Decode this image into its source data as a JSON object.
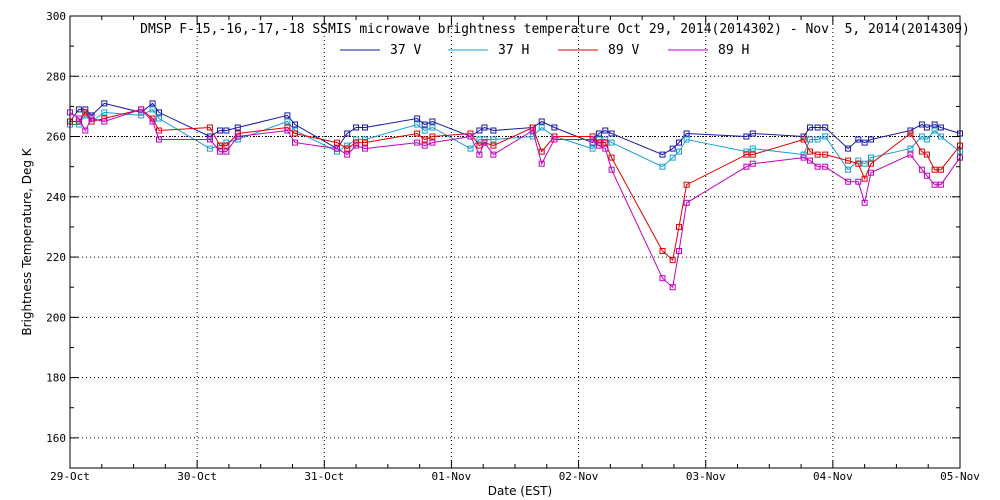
{
  "chart_data": {
    "type": "line",
    "title": "DMSP F-15,-16,-17,-18 SSMIS microwave brightness temperature Oct 29, 2014(2014302) - Nov  5, 2014(2014309)",
    "xlabel": "Date (EST)",
    "ylabel": "Brightness Temperature, Deg K",
    "xlim": [
      0,
      7
    ],
    "ylim": [
      150,
      300
    ],
    "x_ticks": [
      {
        "v": 0,
        "label": "29-Oct"
      },
      {
        "v": 1,
        "label": "30-Oct"
      },
      {
        "v": 2,
        "label": "31-Oct"
      },
      {
        "v": 3,
        "label": "01-Nov"
      },
      {
        "v": 4,
        "label": "02-Nov"
      },
      {
        "v": 5,
        "label": "03-Nov"
      },
      {
        "v": 6,
        "label": "04-Nov"
      },
      {
        "v": 7,
        "label": "05-Nov"
      }
    ],
    "y_ticks": [
      160,
      180,
      200,
      220,
      240,
      260,
      280,
      300
    ],
    "grid": true,
    "legend_position": "top-center",
    "reference_line": 260,
    "series": [
      {
        "name": "37 V",
        "color": "#1a1aa8",
        "points": [
          [
            0.0,
            265
          ],
          [
            0.07,
            269
          ],
          [
            0.12,
            269
          ],
          [
            0.17,
            267
          ],
          [
            0.27,
            271
          ],
          [
            0.56,
            268
          ],
          [
            0.65,
            271
          ],
          [
            0.7,
            268
          ],
          [
            1.1,
            260
          ],
          [
            1.18,
            262
          ],
          [
            1.23,
            262
          ],
          [
            1.32,
            263
          ],
          [
            1.71,
            267
          ],
          [
            1.77,
            264
          ],
          [
            2.1,
            256
          ],
          [
            2.18,
            261
          ],
          [
            2.25,
            263
          ],
          [
            2.32,
            263
          ],
          [
            2.73,
            266
          ],
          [
            2.79,
            264
          ],
          [
            2.85,
            265
          ],
          [
            3.15,
            260
          ],
          [
            3.22,
            262
          ],
          [
            3.26,
            263
          ],
          [
            3.33,
            262
          ],
          [
            3.64,
            263
          ],
          [
            3.71,
            265
          ],
          [
            3.81,
            263
          ],
          [
            4.11,
            258
          ],
          [
            4.16,
            261
          ],
          [
            4.21,
            262
          ],
          [
            4.26,
            261
          ],
          [
            4.66,
            254
          ],
          [
            4.74,
            256
          ],
          [
            4.79,
            258
          ],
          [
            4.85,
            261
          ],
          [
            5.32,
            260
          ],
          [
            5.37,
            261
          ],
          [
            5.77,
            260
          ],
          [
            5.82,
            263
          ],
          [
            5.88,
            263
          ],
          [
            5.94,
            263
          ],
          [
            6.12,
            256
          ],
          [
            6.2,
            259
          ],
          [
            6.25,
            258
          ],
          [
            6.3,
            259
          ],
          [
            6.61,
            262
          ],
          [
            6.7,
            264
          ],
          [
            6.74,
            263
          ],
          [
            6.8,
            264
          ],
          [
            6.85,
            263
          ],
          [
            7.0,
            261
          ]
        ]
      },
      {
        "name": "37 H",
        "color": "#1aa0d0",
        "points": [
          [
            0.0,
            264
          ],
          [
            0.07,
            264
          ],
          [
            0.12,
            267
          ],
          [
            0.17,
            265
          ],
          [
            0.27,
            268
          ],
          [
            0.56,
            267
          ],
          [
            0.65,
            269
          ],
          [
            0.7,
            266
          ],
          [
            1.1,
            256
          ],
          [
            1.18,
            257
          ],
          [
            1.23,
            258
          ],
          [
            1.32,
            259
          ],
          [
            1.71,
            265
          ],
          [
            1.77,
            262
          ],
          [
            2.1,
            255
          ],
          [
            2.18,
            257
          ],
          [
            2.25,
            259
          ],
          [
            2.32,
            259
          ],
          [
            2.73,
            264
          ],
          [
            2.79,
            262
          ],
          [
            2.85,
            263
          ],
          [
            3.15,
            256
          ],
          [
            3.22,
            259
          ],
          [
            3.26,
            259
          ],
          [
            3.33,
            259
          ],
          [
            3.64,
            260
          ],
          [
            3.71,
            263
          ],
          [
            3.81,
            260
          ],
          [
            4.11,
            256
          ],
          [
            4.16,
            259
          ],
          [
            4.21,
            259
          ],
          [
            4.26,
            258
          ],
          [
            4.66,
            250
          ],
          [
            4.74,
            253
          ],
          [
            4.79,
            255
          ],
          [
            4.85,
            259
          ],
          [
            5.32,
            255
          ],
          [
            5.37,
            256
          ],
          [
            5.77,
            254
          ],
          [
            5.82,
            259
          ],
          [
            5.88,
            259
          ],
          [
            5.94,
            260
          ],
          [
            6.12,
            249
          ],
          [
            6.2,
            252
          ],
          [
            6.25,
            251
          ],
          [
            6.3,
            253
          ],
          [
            6.61,
            256
          ],
          [
            6.7,
            260
          ],
          [
            6.74,
            259
          ],
          [
            6.8,
            262
          ],
          [
            6.85,
            260
          ],
          [
            7.0,
            255
          ]
        ]
      },
      {
        "name": "89 V",
        "color": "#e00000",
        "points": [
          [
            0.0,
            265
          ],
          [
            0.07,
            265
          ],
          [
            0.12,
            268
          ],
          [
            0.17,
            265
          ],
          [
            0.27,
            266
          ],
          [
            0.56,
            269
          ],
          [
            0.65,
            266
          ],
          [
            0.7,
            262
          ],
          [
            1.1,
            263
          ],
          [
            1.18,
            257
          ],
          [
            1.23,
            257
          ],
          [
            1.32,
            261
          ],
          [
            1.71,
            263
          ],
          [
            1.77,
            261
          ],
          [
            2.1,
            258
          ],
          [
            2.18,
            256
          ],
          [
            2.25,
            258
          ],
          [
            2.32,
            258
          ],
          [
            2.73,
            261
          ],
          [
            2.79,
            259
          ],
          [
            2.85,
            260
          ],
          [
            3.15,
            261
          ],
          [
            3.22,
            257
          ],
          [
            3.26,
            258
          ],
          [
            3.33,
            257
          ],
          [
            3.64,
            263
          ],
          [
            3.71,
            255
          ],
          [
            3.81,
            260
          ],
          [
            4.11,
            260
          ],
          [
            4.16,
            258
          ],
          [
            4.21,
            258
          ],
          [
            4.26,
            253
          ],
          [
            4.66,
            222
          ],
          [
            4.74,
            219
          ],
          [
            4.79,
            230
          ],
          [
            4.85,
            244
          ],
          [
            5.32,
            254
          ],
          [
            5.37,
            254
          ],
          [
            5.77,
            259
          ],
          [
            5.82,
            255
          ],
          [
            5.88,
            254
          ],
          [
            5.94,
            254
          ],
          [
            6.12,
            252
          ],
          [
            6.2,
            251
          ],
          [
            6.25,
            246
          ],
          [
            6.3,
            251
          ],
          [
            6.61,
            261
          ],
          [
            6.7,
            255
          ],
          [
            6.74,
            254
          ],
          [
            6.8,
            249
          ],
          [
            6.85,
            249
          ],
          [
            7.0,
            257
          ]
        ]
      },
      {
        "name": "89 H",
        "color": "#c000c0",
        "points": [
          [
            0.0,
            268
          ],
          [
            0.07,
            266
          ],
          [
            0.12,
            262
          ],
          [
            0.17,
            266
          ],
          [
            0.27,
            265
          ],
          [
            0.56,
            269
          ],
          [
            0.65,
            265
          ],
          [
            0.7,
            259
          ],
          [
            1.1,
            259
          ],
          [
            1.18,
            255
          ],
          [
            1.23,
            255
          ],
          [
            1.32,
            260
          ],
          [
            1.71,
            262
          ],
          [
            1.77,
            258
          ],
          [
            2.1,
            256
          ],
          [
            2.18,
            254
          ],
          [
            2.25,
            257
          ],
          [
            2.32,
            256
          ],
          [
            2.73,
            258
          ],
          [
            2.79,
            257
          ],
          [
            2.85,
            258
          ],
          [
            3.15,
            260
          ],
          [
            3.22,
            254
          ],
          [
            3.26,
            258
          ],
          [
            3.33,
            254
          ],
          [
            3.64,
            262
          ],
          [
            3.71,
            251
          ],
          [
            3.81,
            259
          ],
          [
            4.11,
            259
          ],
          [
            4.16,
            257
          ],
          [
            4.21,
            256
          ],
          [
            4.26,
            249
          ],
          [
            4.66,
            213
          ],
          [
            4.74,
            210
          ],
          [
            4.79,
            222
          ],
          [
            4.85,
            238
          ],
          [
            5.32,
            250
          ],
          [
            5.37,
            251
          ],
          [
            5.77,
            253
          ],
          [
            5.82,
            252
          ],
          [
            5.88,
            250
          ],
          [
            5.94,
            250
          ],
          [
            6.12,
            245
          ],
          [
            6.2,
            245
          ],
          [
            6.25,
            238
          ],
          [
            6.3,
            248
          ],
          [
            6.61,
            254
          ],
          [
            6.7,
            249
          ],
          [
            6.74,
            247
          ],
          [
            6.8,
            244
          ],
          [
            6.85,
            244
          ],
          [
            7.0,
            253
          ]
        ]
      }
    ]
  }
}
